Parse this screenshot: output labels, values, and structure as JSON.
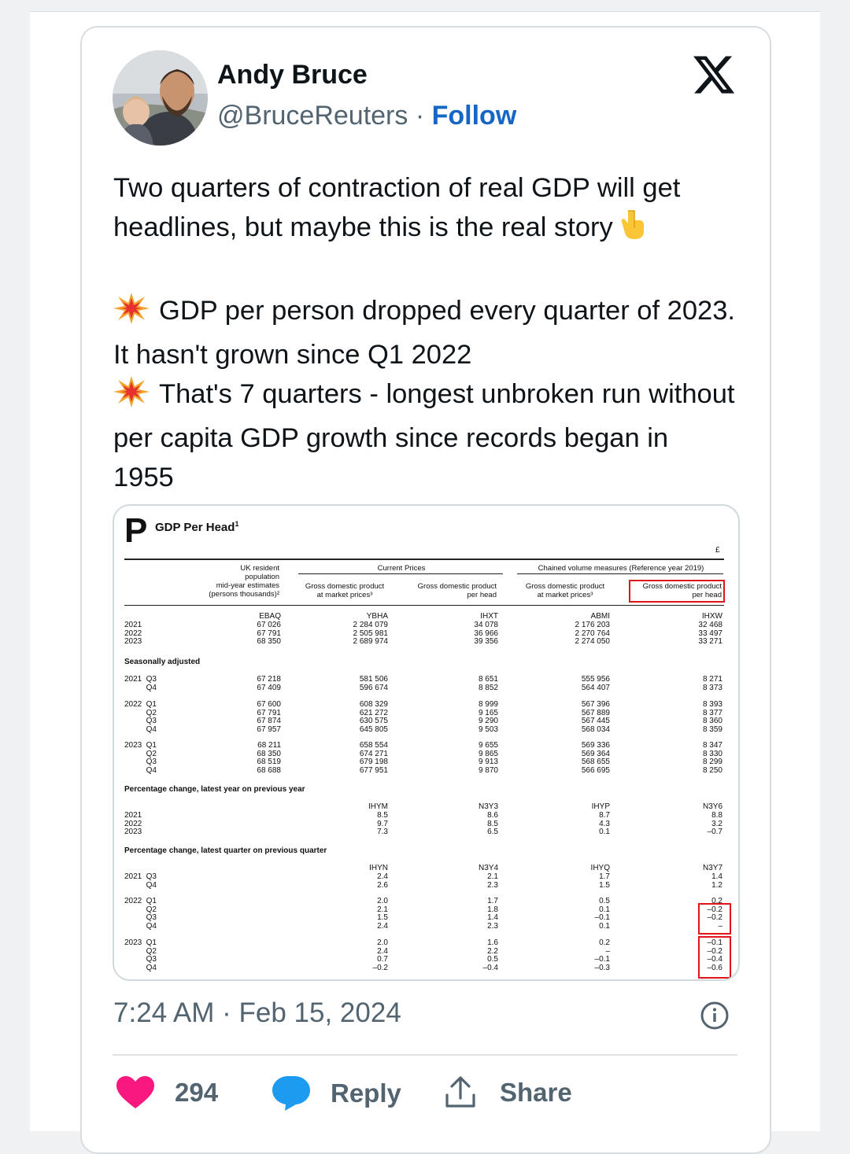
{
  "author": {
    "name": "Andy Bruce",
    "handle": "@BruceReuters",
    "separator": "·",
    "follow_label": "Follow"
  },
  "tweet": {
    "line1": "Two quarters of contraction of real GDP will get headlines, but maybe this is the real story",
    "bullet1": "GDP per person dropped every quarter of 2023. It hasn't grown since Q1 2022",
    "bullet2": "That's 7 quarters - longest unbroken run without per capita GDP growth since records began in 1955",
    "emoji_point_down": "point-down-emoji",
    "emoji_collision": "collision-emoji"
  },
  "image": {
    "letter": "P",
    "title": "GDP Per Head",
    "title_sup": "1",
    "currency": "£",
    "col1_head": [
      "UK resident",
      "population",
      "mid-year estimates",
      "(persons thousands)²"
    ],
    "group_current": "Current Prices",
    "group_chained": "Chained volume measures (Reference year 2019)",
    "col2_head": [
      "Gross domestic product",
      "at market prices³"
    ],
    "col3_head": [
      "Gross domestic product",
      "per head"
    ],
    "col4_head": [
      "Gross domestic product",
      "at market prices³"
    ],
    "col5_head": [
      "Gross domestic product",
      "per head"
    ],
    "codes_level": [
      "EBAQ",
      "YBHA",
      "IHXT",
      "ABMI",
      "IHXW"
    ],
    "annual": {
      "labels": [
        "2021",
        "2022",
        "2023"
      ],
      "rows": [
        [
          "67 026",
          "2 284 079",
          "34 078",
          "2 176 203",
          "32 468"
        ],
        [
          "67 791",
          "2 505 981",
          "36 966",
          "2 270 764",
          "33 497"
        ],
        [
          "68 350",
          "2 689 974",
          "39 356",
          "2 274 050",
          "33 271"
        ]
      ]
    },
    "section_sa": "Seasonally adjusted",
    "sa_2021": {
      "year": "2021",
      "quarters": [
        "Q3",
        "Q4"
      ],
      "rows": [
        [
          "67 218",
          "581 506",
          "8 651",
          "555 956",
          "8 271"
        ],
        [
          "67 409",
          "596 674",
          "8 852",
          "564 407",
          "8 373"
        ]
      ]
    },
    "sa_2022": {
      "year": "2022",
      "quarters": [
        "Q1",
        "Q2",
        "Q3",
        "Q4"
      ],
      "rows": [
        [
          "67 600",
          "608 329",
          "8 999",
          "567 396",
          "8 393"
        ],
        [
          "67 791",
          "621 272",
          "9 165",
          "567 889",
          "8 377"
        ],
        [
          "67 874",
          "630 575",
          "9 290",
          "567 445",
          "8 360"
        ],
        [
          "67 957",
          "645 805",
          "9 503",
          "568 034",
          "8 359"
        ]
      ]
    },
    "sa_2023": {
      "year": "2023",
      "quarters": [
        "Q1",
        "Q2",
        "Q3",
        "Q4"
      ],
      "rows": [
        [
          "68 211",
          "658 554",
          "9 655",
          "569 336",
          "8 347"
        ],
        [
          "68 350",
          "674 271",
          "9 865",
          "569 364",
          "8 330"
        ],
        [
          "68 519",
          "679 198",
          "9 913",
          "568 655",
          "8 299"
        ],
        [
          "68 688",
          "677 951",
          "9 870",
          "566 695",
          "8 250"
        ]
      ]
    },
    "section_yoy": "Percentage change, latest year on previous year",
    "codes_yoy": [
      "IHYM",
      "N3Y3",
      "IHYP",
      "N3Y6"
    ],
    "yoy": {
      "labels": [
        "2021",
        "2022",
        "2023"
      ],
      "rows": [
        [
          "8.5",
          "8.6",
          "8.7",
          "8.8"
        ],
        [
          "9.7",
          "8.5",
          "4.3",
          "3.2"
        ],
        [
          "7.3",
          "6.5",
          "0.1",
          "–0.7"
        ]
      ]
    },
    "section_qoq": "Percentage change, latest quarter on previous quarter",
    "codes_qoq": [
      "IHYN",
      "N3Y4",
      "IHYQ",
      "N3Y7"
    ],
    "qoq_2021": {
      "year": "2021",
      "quarters": [
        "Q3",
        "Q4"
      ],
      "rows": [
        [
          "2.4",
          "2.1",
          "1.7",
          "1.4"
        ],
        [
          "2.6",
          "2.3",
          "1.5",
          "1.2"
        ]
      ]
    },
    "qoq_2022": {
      "year": "2022",
      "quarters": [
        "Q1",
        "Q2",
        "Q3",
        "Q4"
      ],
      "rows": [
        [
          "2.0",
          "1.7",
          "0.5",
          "0.2"
        ],
        [
          "2.1",
          "1.8",
          "0.1",
          "–0.2"
        ],
        [
          "1.5",
          "1.4",
          "–0.1",
          "–0.2"
        ],
        [
          "2.4",
          "2.3",
          "0.1",
          "–"
        ]
      ]
    },
    "qoq_2023": {
      "year": "2023",
      "quarters": [
        "Q1",
        "Q2",
        "Q3",
        "Q4"
      ],
      "rows": [
        [
          "2.0",
          "1.6",
          "0.2",
          "–0.1"
        ],
        [
          "2.4",
          "2.2",
          "–",
          "–0.2"
        ],
        [
          "0.7",
          "0.5",
          "–0.1",
          "–0.4"
        ],
        [
          "–0.2",
          "–0.4",
          "–0.3",
          "–0.6"
        ]
      ]
    },
    "highlight_color": "#e0151b"
  },
  "meta": {
    "timestamp": "7:24 AM · Feb 15, 2024"
  },
  "actions": {
    "likes": "294",
    "reply_label": "Reply",
    "share_label": "Share"
  },
  "colors": {
    "follow": "#1666c5",
    "like": "#f91880",
    "reply_icon": "#1d9bf0",
    "muted": "#536471"
  }
}
